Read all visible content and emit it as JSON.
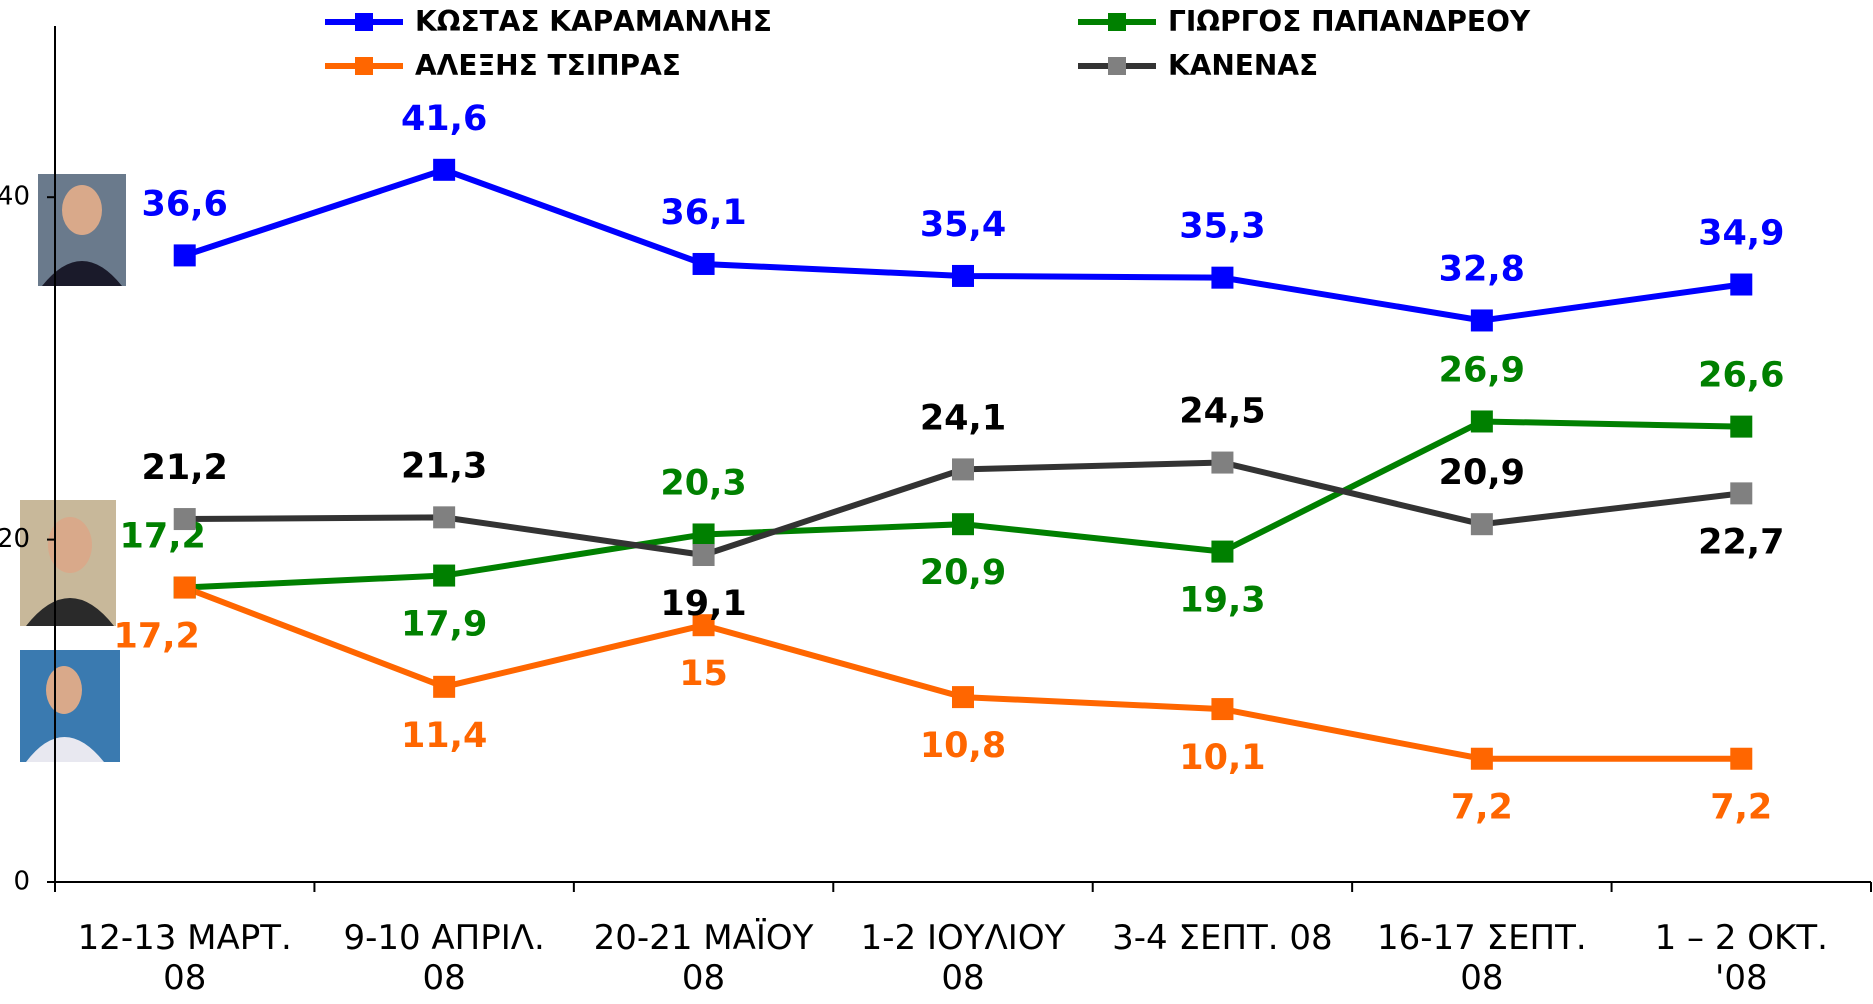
{
  "chart_data": {
    "type": "line",
    "categories": [
      "12-13 ΜΑΡΤ. 08",
      "9-10 ΑΠΡΙΛ. 08",
      "20-21 ΜΑΪΟΥ 08",
      "1-2 ΙΟΥΛΙΟΥ 08",
      "3-4 ΣΕΠΤ. 08",
      "16-17 ΣΕΠΤ. 08",
      "1 – 2 ΟΚΤ. '08"
    ],
    "series": [
      {
        "name": "ΚΩΣΤΑΣ ΚΑΡΑΜΑΝΛΗΣ",
        "color": "#0000ff",
        "marker_color": "#0000ff",
        "values": [
          36.6,
          41.6,
          36.1,
          35.4,
          35.3,
          32.8,
          34.9
        ],
        "value_labels": [
          "36,6",
          "41,6",
          "36,1",
          "35,4",
          "35,3",
          "32,8",
          "34,9"
        ],
        "label_color": "#0000ff"
      },
      {
        "name": "ΓΙΩΡΓΟΣ ΠΑΠΑΝΔΡΕΟΥ",
        "color": "#008000",
        "marker_color": "#008000",
        "values": [
          17.2,
          17.9,
          20.3,
          20.9,
          19.3,
          26.9,
          26.6
        ],
        "value_labels": [
          "17,2",
          "17,9",
          "20,3",
          "20,9",
          "19,3",
          "26,9",
          "26,6"
        ],
        "label_color": "#008000"
      },
      {
        "name": "ΑΛΕΞΗΣ ΤΣΙΠΡΑΣ",
        "color": "#ff6600",
        "marker_color": "#ff6600",
        "values": [
          17.2,
          11.4,
          15,
          10.8,
          10.1,
          7.2,
          7.2
        ],
        "value_labels": [
          "17,2",
          "11,4",
          "15",
          "10,8",
          "10,1",
          "7,2",
          "7,2"
        ],
        "label_color": "#ff6600"
      },
      {
        "name": "ΚΑΝΕΝΑΣ",
        "color": "#333333",
        "marker_color": "#808080",
        "values": [
          21.2,
          21.3,
          19.1,
          24.1,
          24.5,
          20.9,
          22.7
        ],
        "value_labels": [
          "21,2",
          "21,3",
          "19,1",
          "24,1",
          "24,5",
          "20,9",
          "22,7"
        ],
        "label_color": "#000000"
      }
    ],
    "ylim": [
      0,
      50
    ],
    "yticks": [
      0,
      20,
      40
    ]
  }
}
